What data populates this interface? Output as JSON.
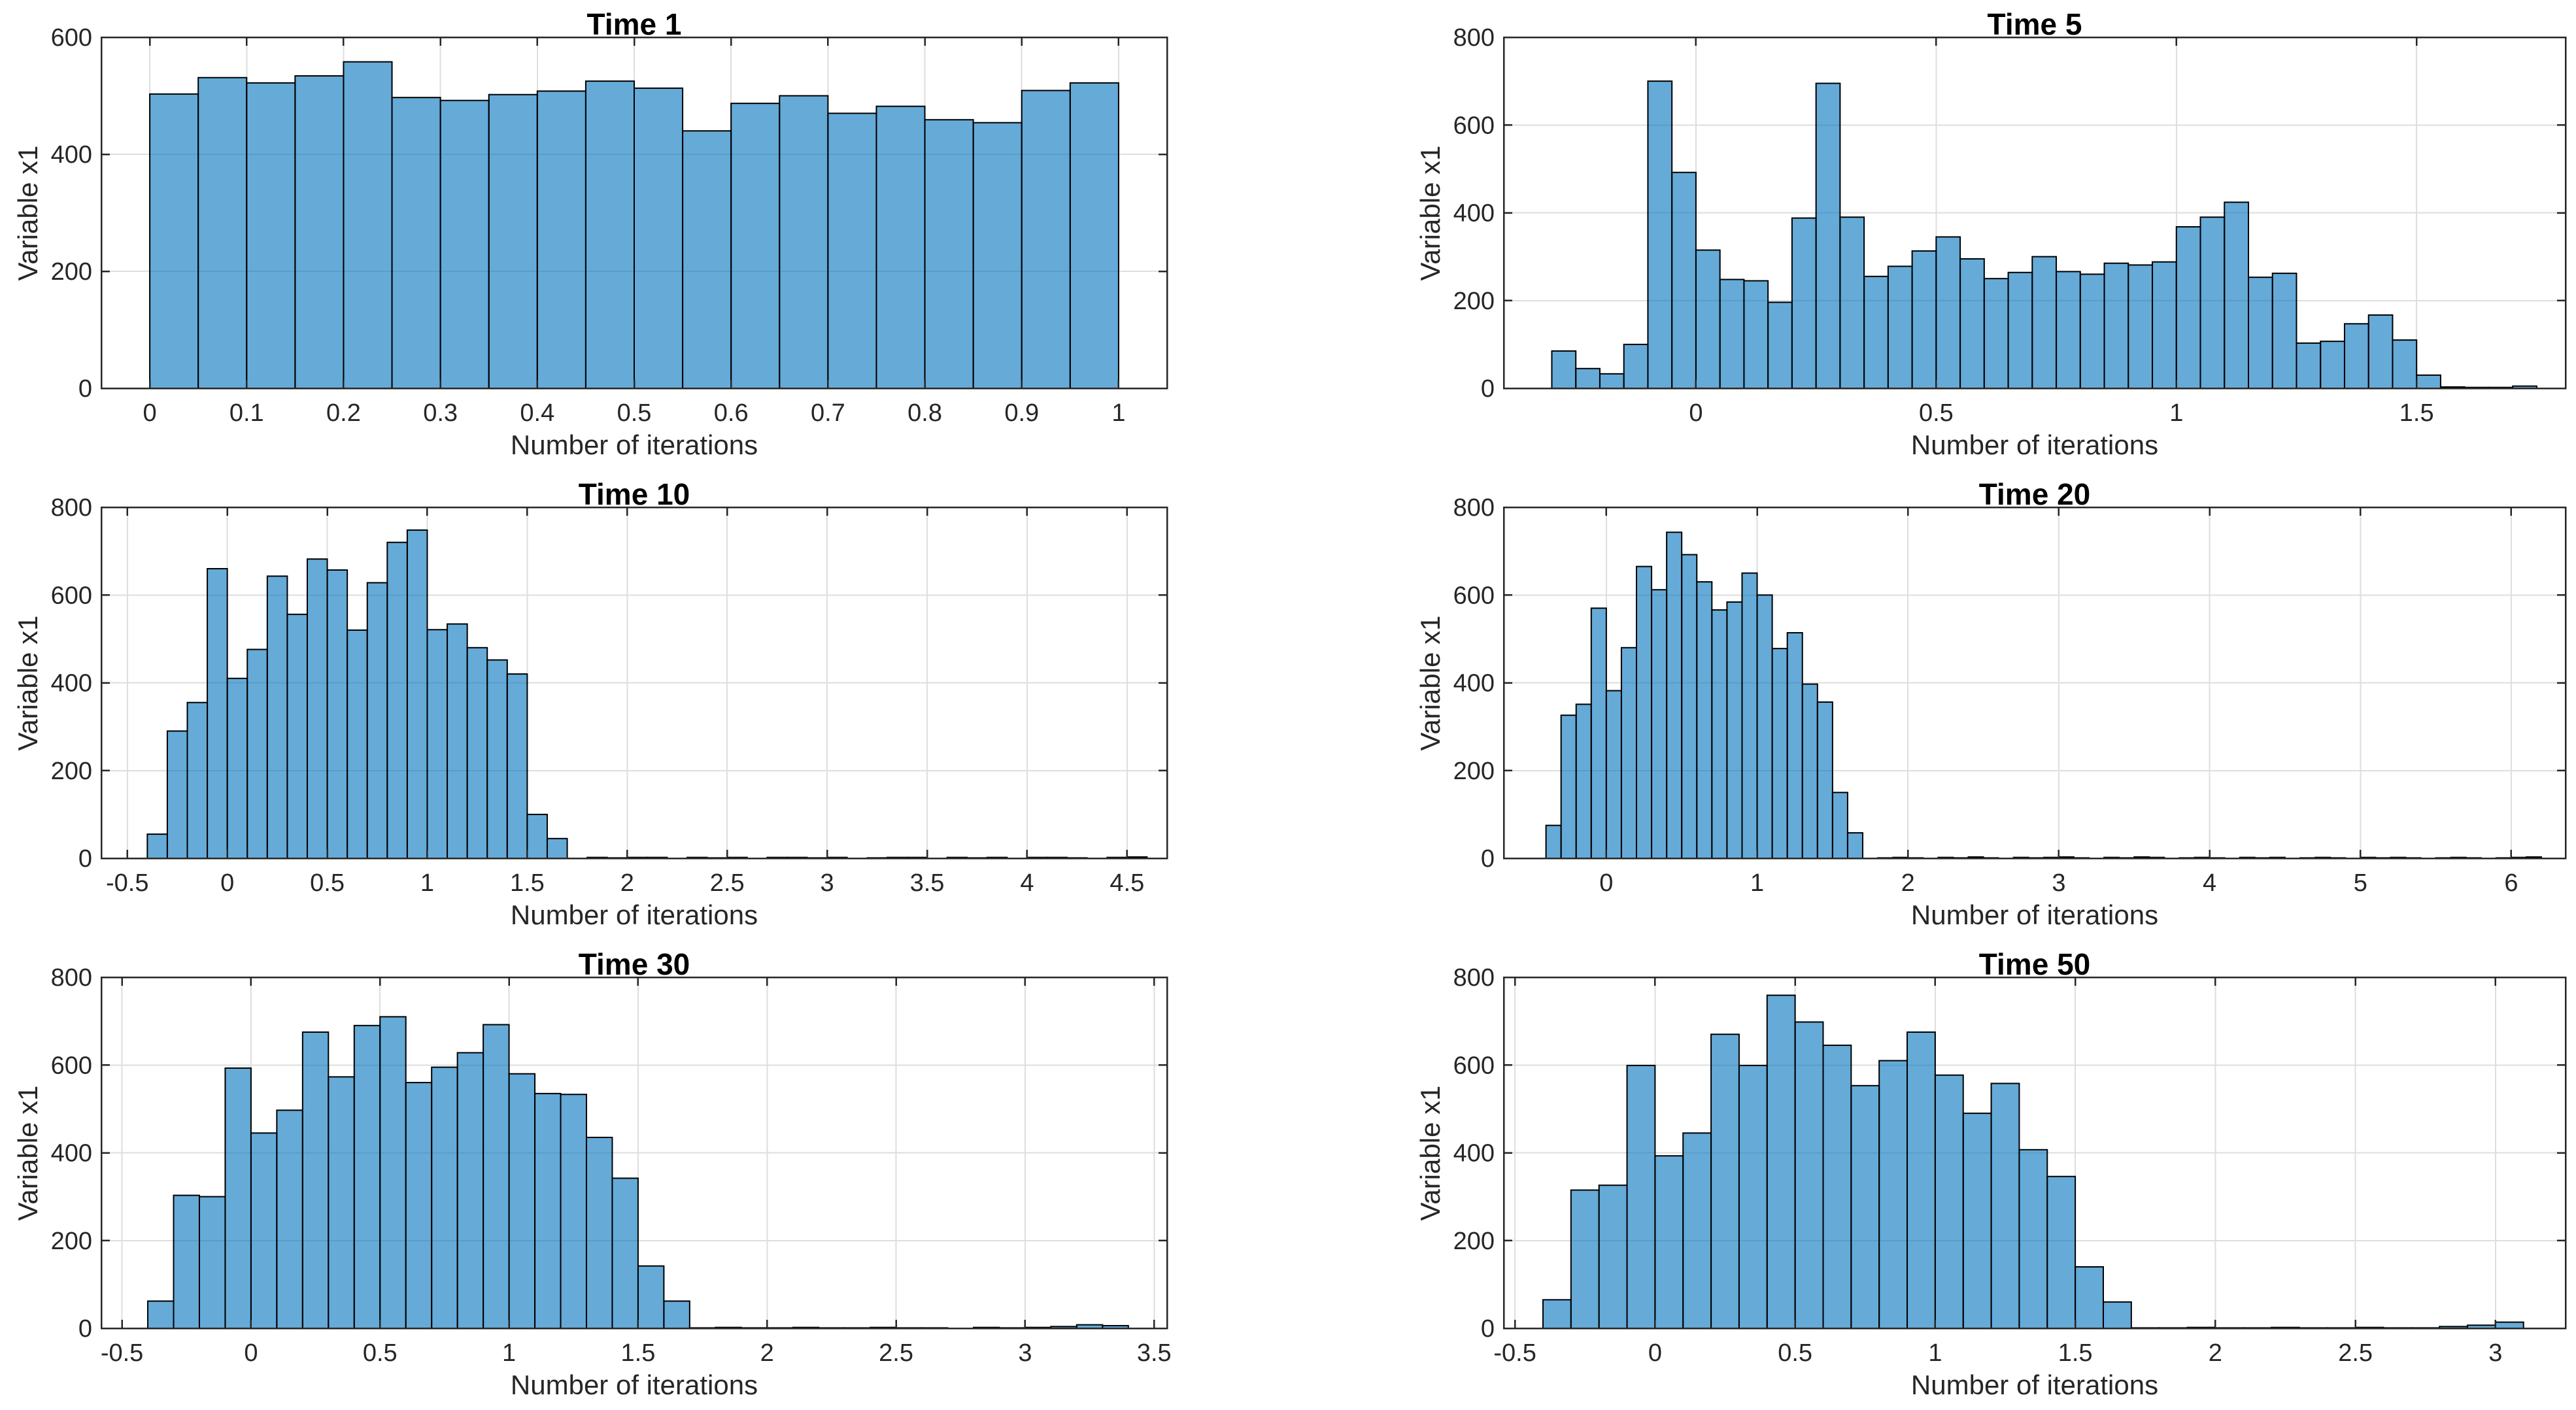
{
  "figure": {
    "background": "#FFFFFF",
    "bar_fill": "#0072BD",
    "bar_fill_opacity": 0.6,
    "bar_fill_flat": "#66AAD7",
    "bar_edge": "#000000",
    "grid_color": "#DEDEDE",
    "axis_color": "#262626",
    "tick_label_color": "#262626",
    "title_color": "#000000"
  },
  "chart_data": [
    {
      "type": "bar",
      "title": "Time 1",
      "xlabel": "Number of iterations",
      "ylabel": "Variable x1",
      "bin_start": 0.0,
      "bin_width": 0.05,
      "values": [
        503,
        531,
        522,
        534,
        558,
        497,
        492,
        502,
        508,
        525,
        513,
        440,
        487,
        500,
        470,
        482,
        459,
        454,
        509,
        522
      ],
      "xlim": [
        -0.05,
        1.05
      ],
      "ylim": [
        0,
        600
      ],
      "xticks": [
        0,
        0.1,
        0.2,
        0.3,
        0.4,
        0.5,
        0.6,
        0.7,
        0.8,
        0.9,
        1
      ],
      "yticks": [
        0,
        200,
        400,
        600
      ],
      "grid": true,
      "legend": "none"
    },
    {
      "type": "bar",
      "title": "Time 5",
      "xlabel": "Number of iterations",
      "ylabel": "Variable x1",
      "bin_start": -0.3,
      "bin_width": 0.05,
      "values": [
        85,
        45,
        33,
        100,
        700,
        492,
        315,
        248,
        245,
        196,
        388,
        695,
        390,
        255,
        278,
        313,
        345,
        295,
        250,
        264,
        300,
        266,
        260,
        285,
        281,
        288,
        368,
        390,
        424,
        253,
        262,
        103,
        107,
        147,
        167,
        110,
        30,
        3,
        2,
        2,
        5
      ],
      "xlim": [
        -0.4,
        1.81
      ],
      "ylim": [
        0,
        800
      ],
      "xticks": [
        0,
        0.5,
        1,
        1.5
      ],
      "yticks": [
        0,
        200,
        400,
        600,
        800
      ],
      "grid": true,
      "legend": "none"
    },
    {
      "type": "bar",
      "title": "Time 10",
      "xlabel": "Number of iterations",
      "ylabel": "Variable x1",
      "bin_start": -0.4,
      "bin_width": 0.1,
      "values": [
        55,
        290,
        355,
        660,
        410,
        476,
        643,
        556,
        682,
        657,
        520,
        628,
        720,
        748,
        521,
        534,
        480,
        452,
        420,
        100,
        45,
        0,
        2,
        1,
        2,
        2,
        0,
        2,
        1,
        2,
        0,
        2,
        2,
        1,
        2,
        0,
        1,
        2,
        2,
        0,
        2,
        1,
        2,
        0,
        2,
        2,
        1,
        0,
        2,
        3
      ],
      "xlim": [
        -0.63,
        4.7
      ],
      "ylim": [
        0,
        800
      ],
      "xticks": [
        -0.5,
        0,
        0.5,
        1,
        1.5,
        2,
        2.5,
        3,
        3.5,
        4,
        4.5
      ],
      "yticks": [
        0,
        200,
        400,
        600,
        800
      ],
      "grid": true,
      "legend": "none"
    },
    {
      "type": "bar",
      "title": "Time 20",
      "xlabel": "Number of iterations",
      "ylabel": "Variable x1",
      "bin_start": -0.4,
      "bin_width": 0.1,
      "values": [
        75,
        326,
        351,
        570,
        382,
        480,
        665,
        612,
        743,
        692,
        630,
        566,
        584,
        650,
        600,
        478,
        514,
        397,
        356,
        150,
        58,
        0,
        1,
        2,
        1,
        0,
        2,
        1,
        3,
        1,
        0,
        2,
        1,
        2,
        3,
        1,
        0,
        2,
        1,
        3,
        2,
        0,
        1,
        2,
        1,
        0,
        2,
        1,
        2,
        0,
        1,
        2,
        1,
        0,
        2,
        1,
        2,
        1,
        0,
        1,
        2,
        1,
        0,
        1,
        2,
        3
      ],
      "xlim": [
        -0.68,
        6.36
      ],
      "ylim": [
        0,
        800
      ],
      "xticks": [
        0,
        1,
        2,
        3,
        4,
        5,
        6
      ],
      "yticks": [
        0,
        200,
        400,
        600,
        800
      ],
      "grid": true,
      "legend": "none"
    },
    {
      "type": "bar",
      "title": "Time 30",
      "xlabel": "Number of iterations",
      "ylabel": "Variable x1",
      "bin_start": -0.4,
      "bin_width": 0.1,
      "values": [
        62,
        303,
        300,
        593,
        445,
        497,
        675,
        573,
        690,
        710,
        560,
        595,
        628,
        692,
        580,
        535,
        533,
        435,
        342,
        142,
        62,
        1,
        2,
        1,
        1,
        2,
        1,
        1,
        2,
        1,
        1,
        0,
        2,
        1,
        2,
        4,
        8,
        6
      ],
      "xlim": [
        -0.58,
        3.55
      ],
      "ylim": [
        0,
        800
      ],
      "xticks": [
        -0.5,
        0,
        0.5,
        1,
        1.5,
        2,
        2.5,
        3,
        3.5
      ],
      "yticks": [
        0,
        200,
        400,
        600,
        800
      ],
      "grid": true,
      "legend": "none"
    },
    {
      "type": "bar",
      "title": "Time 50",
      "xlabel": "Number of iterations",
      "ylabel": "Variable x1",
      "bin_start": -0.4,
      "bin_width": 0.1,
      "values": [
        65,
        315,
        326,
        599,
        393,
        445,
        670,
        599,
        759,
        698,
        645,
        553,
        610,
        675,
        577,
        490,
        558,
        407,
        346,
        140,
        60,
        1,
        1,
        2,
        1,
        1,
        2,
        1,
        1,
        2,
        1,
        1,
        4,
        7,
        14
      ],
      "xlim": [
        -0.54,
        3.25
      ],
      "ylim": [
        0,
        800
      ],
      "xticks": [
        -0.5,
        0,
        0.5,
        1,
        1.5,
        2,
        2.5,
        3
      ],
      "yticks": [
        0,
        200,
        400,
        600,
        800
      ],
      "grid": true,
      "legend": "none"
    }
  ]
}
